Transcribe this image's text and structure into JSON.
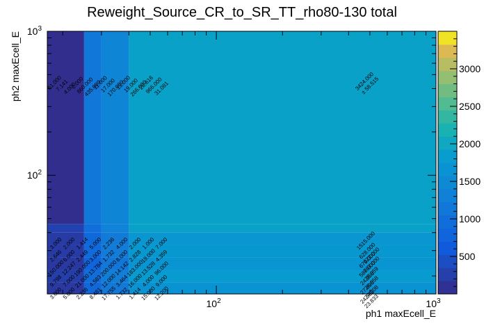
{
  "chart_data": {
    "type": "heatmap",
    "title": "Reweight_Source_CR_to_SR_TT_rho80-130 total",
    "xlabel": "ph1 maxEcell_E",
    "ylabel": "ph2 maxEcell_E",
    "x_scale": "log",
    "y_scale": "log",
    "xlim": [
      17,
      1000
    ],
    "ylim": [
      15,
      1000
    ],
    "x_ticks": [
      {
        "value": 100,
        "base": "10",
        "exp": "2"
      },
      {
        "value": 1000,
        "base": "10",
        "exp": "3"
      }
    ],
    "y_ticks": [
      {
        "value": 100,
        "base": "10",
        "exp": "2"
      },
      {
        "value": 1000,
        "base": "10",
        "exp": "3"
      }
    ],
    "x_edges": [
      17,
      25,
      30,
      40,
      1000
    ],
    "y_edges": [
      15,
      18,
      22,
      27,
      33,
      40,
      46,
      1000
    ],
    "z": [
      [
        180,
        850,
        1180,
        1660,
        1500
      ],
      [
        250,
        950,
        1300,
        1800,
        960
      ],
      [
        190,
        800,
        1150,
        1700,
        1320
      ],
      [
        220,
        900,
        1250,
        1750,
        1100
      ],
      [
        210,
        880,
        1220,
        1720,
        1230
      ],
      [
        300,
        1000,
        1350,
        1900,
        1515
      ],
      [
        50,
        1150,
        1400,
        1900,
        3424
      ]
    ],
    "zlim": [
      0,
      3500
    ],
    "colorbar_ticks": [
      500,
      1000,
      1500,
      2000,
      2500,
      3000
    ],
    "annotations": {
      "top_right_value": "3424.000",
      "top_right_error": "± 58.515",
      "mid_right_value": "1515.000",
      "top_row_values": [
        "51.000",
        "7.141",
        "4.000",
        "2.000",
        "860.000",
        "435.000",
        "11.000",
        "17.000",
        "170.000",
        "13.000",
        "19.000",
        "266.000",
        "20.616",
        "966.000",
        "31.081"
      ],
      "low_right_values": [
        "628.000",
        "622.000",
        "679.000",
        "767.000",
        "586.000",
        "25.059",
        "24.958",
        "26.058",
        "27.695",
        "24.208",
        "24.558",
        "23.833"
      ],
      "low_left_values": [
        "3.000",
        "2.000",
        "1.414",
        "5.000",
        "2.236",
        "4.000",
        "2.000",
        "1.000",
        "7.000",
        "2.646",
        "6.000",
        "2.449",
        "3.000",
        "1.732",
        "8.000",
        "2.828",
        "19.000",
        "4.359",
        "150.000",
        "12.247",
        "190.000",
        "13.784",
        "200.000",
        "14.142",
        "183.000",
        "13.528",
        "96.000",
        "9.798",
        "7.000",
        "21.000",
        "4.583",
        "12.000",
        "3.464",
        "16.000",
        "4.000",
        "9.000",
        "3.000",
        "5.000",
        "2.236",
        "8.481",
        "17.755",
        "1.732",
        "1.414",
        "15.000",
        "12.200"
      ]
    }
  }
}
